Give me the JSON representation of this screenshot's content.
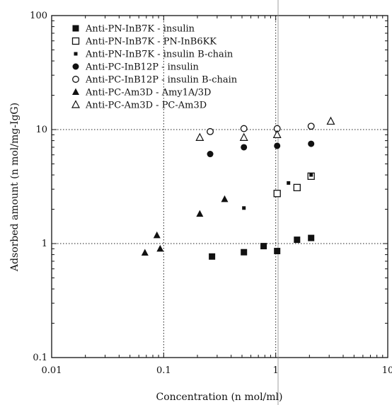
{
  "chart_data": {
    "type": "scatter",
    "xlabel": "Concentration (n mol/ml)",
    "ylabel": "Adsorbed amount (n mol/mg-IgG)",
    "x_scale": "log",
    "y_scale": "log",
    "xlim": [
      0.01,
      10
    ],
    "ylim": [
      0.1,
      100
    ],
    "x_ticks": [
      {
        "value": 0.01,
        "label": "0.01"
      },
      {
        "value": 0.1,
        "label": "0.1"
      },
      {
        "value": 1,
        "label": "1"
      },
      {
        "value": 10,
        "label": "10"
      }
    ],
    "y_ticks": [
      {
        "value": 0.1,
        "label": "0.1"
      },
      {
        "value": 1,
        "label": "1"
      },
      {
        "value": 10,
        "label": "10"
      },
      {
        "value": 100,
        "label": "100"
      }
    ],
    "reference_lines": {
      "x": [
        0.1,
        1
      ],
      "y": [
        1,
        10
      ]
    },
    "legend_position": "top-left",
    "series": [
      {
        "name": "Anti-PN-InB7K - insulin",
        "marker": "filled-square",
        "points": [
          [
            0.27,
            0.77
          ],
          [
            0.52,
            0.84
          ],
          [
            0.78,
            0.95
          ],
          [
            1.03,
            0.86
          ],
          [
            1.55,
            1.08
          ],
          [
            2.07,
            1.12
          ]
        ]
      },
      {
        "name": "Anti-PN-InB7K - PN-InB6KK",
        "marker": "open-square",
        "points": [
          [
            1.03,
            2.75
          ],
          [
            1.55,
            3.1
          ],
          [
            2.07,
            3.9
          ]
        ]
      },
      {
        "name": "Anti-PN-InB7K - insulin B-chain",
        "marker": "small-filled-square",
        "points": [
          [
            0.52,
            2.05
          ],
          [
            1.3,
            3.4
          ],
          [
            2.07,
            4.0
          ]
        ]
      },
      {
        "name": "Anti-PC-InB12P - insulin",
        "marker": "filled-circle",
        "points": [
          [
            0.26,
            6.1
          ],
          [
            0.52,
            7.0
          ],
          [
            1.03,
            7.2
          ],
          [
            2.07,
            7.5
          ]
        ]
      },
      {
        "name": "Anti-PC-InB12P - insulin B-chain",
        "marker": "open-circle",
        "points": [
          [
            0.26,
            9.6
          ],
          [
            0.52,
            10.2
          ],
          [
            1.03,
            10.2
          ],
          [
            2.07,
            10.7
          ]
        ]
      },
      {
        "name": "Anti-PC-Am3D - Amy1A/3D",
        "marker": "filled-triangle",
        "points": [
          [
            0.068,
            0.83
          ],
          [
            0.087,
            1.18
          ],
          [
            0.093,
            0.9
          ],
          [
            0.21,
            1.82
          ],
          [
            0.35,
            2.45
          ]
        ]
      },
      {
        "name": "Anti-PC-Am3D - PC-Am3D",
        "marker": "open-triangle",
        "points": [
          [
            0.21,
            8.5
          ],
          [
            0.52,
            8.5
          ],
          [
            1.03,
            9.0
          ],
          [
            3.1,
            11.8
          ]
        ]
      }
    ]
  }
}
